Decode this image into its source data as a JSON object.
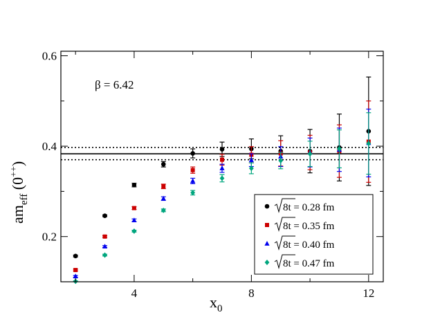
{
  "chart_data": {
    "type": "scatter",
    "title": "",
    "xlabel": {
      "main": "x",
      "sub": "0"
    },
    "ylabel": {
      "main": "am",
      "sub": "eff",
      "paren_open": " (0",
      "sup": "++",
      "paren_close": ")"
    },
    "xlim": [
      1.5,
      12.5
    ],
    "ylim": [
      0.1,
      0.61
    ],
    "xticks": [
      4,
      8,
      12
    ],
    "yticks": [
      0.2,
      0.4,
      0.6
    ],
    "xtick_labels": [
      "4",
      "8",
      "12"
    ],
    "ytick_labels": [
      "0.2",
      "0.4",
      "0.6"
    ],
    "annotation": "β = 6.42",
    "band": {
      "center": 0.383,
      "lower": 0.37,
      "upper": 0.397
    },
    "legend_position": "bottom-right",
    "series": [
      {
        "name": "√8t = 0.28 fm",
        "legend_root": "8t",
        "legend_suffix": " = 0.28 fm",
        "color": "#000000",
        "marker": "circle",
        "x": [
          2,
          3,
          4,
          5,
          6,
          7,
          8,
          9,
          10,
          11,
          12
        ],
        "y": [
          0.157,
          0.246,
          0.314,
          0.36,
          0.384,
          0.393,
          0.394,
          0.389,
          0.389,
          0.397,
          0.433
        ],
        "err": [
          0.002,
          0.002,
          0.004,
          0.006,
          0.01,
          0.016,
          0.022,
          0.034,
          0.048,
          0.074,
          0.12
        ]
      },
      {
        "name": "√8t = 0.35 fm",
        "legend_root": "8t",
        "legend_suffix": " = 0.35 fm",
        "color": "#cc0000",
        "marker": "square",
        "x": [
          2,
          3,
          4,
          5,
          6,
          7,
          8,
          9,
          10,
          11,
          12
        ],
        "y": [
          0.126,
          0.2,
          0.263,
          0.311,
          0.347,
          0.37,
          0.381,
          0.384,
          0.386,
          0.389,
          0.41
        ],
        "err": [
          0.002,
          0.002,
          0.003,
          0.005,
          0.007,
          0.012,
          0.018,
          0.028,
          0.038,
          0.058,
          0.09
        ]
      },
      {
        "name": "√8t = 0.40 fm",
        "legend_root": "8t",
        "legend_suffix": " = 0.40 fm",
        "color": "#0000ee",
        "marker": "triangle",
        "x": [
          2,
          3,
          4,
          5,
          6,
          7,
          8,
          9,
          10,
          11,
          12
        ],
        "y": [
          0.112,
          0.178,
          0.236,
          0.284,
          0.323,
          0.351,
          0.369,
          0.377,
          0.386,
          0.392,
          0.407
        ],
        "err": [
          0.002,
          0.002,
          0.003,
          0.004,
          0.006,
          0.009,
          0.014,
          0.022,
          0.032,
          0.048,
          0.075
        ]
      },
      {
        "name": "√8t = 0.47 fm",
        "legend_root": "8t",
        "legend_suffix": " = 0.47 fm",
        "color": "#00a67e",
        "marker": "diamond",
        "x": [
          2,
          3,
          4,
          5,
          6,
          7,
          8,
          9,
          10,
          11,
          12
        ],
        "y": [
          0.101,
          0.159,
          0.212,
          0.258,
          0.297,
          0.329,
          0.351,
          0.368,
          0.383,
          0.394,
          0.406
        ],
        "err": [
          0.001,
          0.002,
          0.002,
          0.003,
          0.005,
          0.008,
          0.012,
          0.018,
          0.028,
          0.042,
          0.068
        ]
      }
    ]
  }
}
